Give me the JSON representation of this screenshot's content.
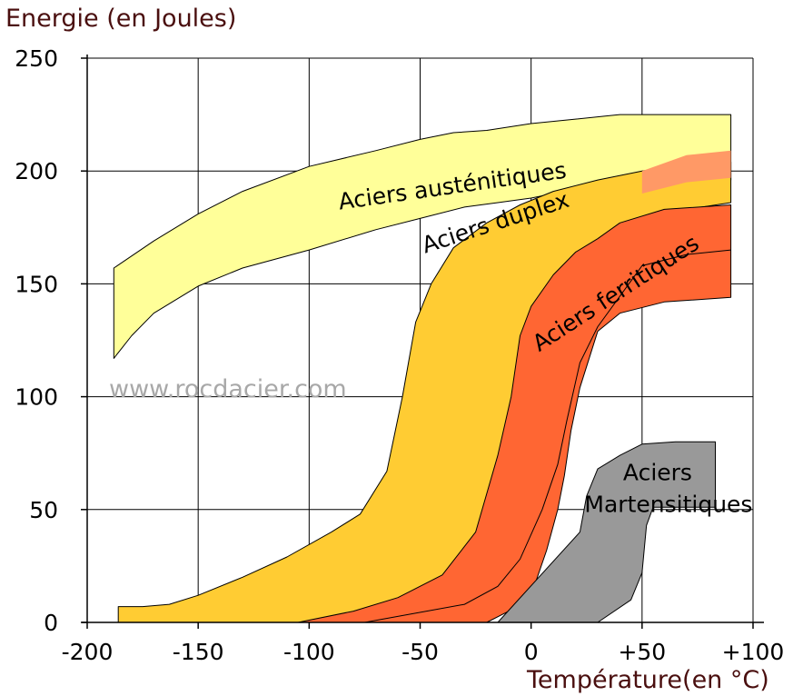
{
  "chart_data": {
    "type": "area",
    "title": "",
    "ylabel": "Energie (en Joules)",
    "xlabel": "Température(en °C)",
    "xlim": [
      -200,
      100
    ],
    "ylim": [
      0,
      250
    ],
    "grid": true,
    "watermark": "www.rocdacier.com",
    "x_ticks": [
      {
        "value": -200,
        "label": "-200"
      },
      {
        "value": -150,
        "label": "-150"
      },
      {
        "value": -100,
        "label": "-100"
      },
      {
        "value": -50,
        "label": "-50"
      },
      {
        "value": 0,
        "label": "0"
      },
      {
        "value": 50,
        "label": "+50"
      },
      {
        "value": 100,
        "label": "+100"
      }
    ],
    "y_ticks": [
      {
        "value": 0,
        "label": "0"
      },
      {
        "value": 50,
        "label": "50"
      },
      {
        "value": 100,
        "label": "100"
      },
      {
        "value": 150,
        "label": "150"
      },
      {
        "value": 200,
        "label": "200"
      },
      {
        "value": 250,
        "label": "250"
      }
    ],
    "series": [
      {
        "name": "Aciers austénitiques",
        "color": "#ffff99",
        "upper": [
          [
            -188,
            157
          ],
          [
            -170,
            169
          ],
          [
            -150,
            181
          ],
          [
            -130,
            191
          ],
          [
            -100,
            202
          ],
          [
            -70,
            209
          ],
          [
            -50,
            214
          ],
          [
            -35,
            217
          ],
          [
            -20,
            218
          ],
          [
            0,
            221
          ],
          [
            20,
            223
          ],
          [
            40,
            225
          ],
          [
            60,
            225
          ],
          [
            90,
            225
          ]
        ],
        "lower": [
          [
            -188,
            117
          ],
          [
            -180,
            127
          ],
          [
            -170,
            137
          ],
          [
            -150,
            149
          ],
          [
            -130,
            157
          ],
          [
            -100,
            165
          ],
          [
            -70,
            174
          ],
          [
            -50,
            179
          ],
          [
            -30,
            184
          ],
          [
            -15,
            186
          ],
          [
            0,
            188
          ],
          [
            20,
            192
          ],
          [
            40,
            194
          ],
          [
            60,
            195
          ],
          [
            90,
            196
          ]
        ],
        "label_x": -35,
        "label_y": 190,
        "label_rotation": -8
      },
      {
        "name": "Aciers duplex",
        "color": "#ffcc33",
        "upper": [
          [
            -186,
            7
          ],
          [
            -175,
            7
          ],
          [
            -163,
            8
          ],
          [
            -150,
            12
          ],
          [
            -130,
            20
          ],
          [
            -110,
            29
          ],
          [
            -90,
            40
          ],
          [
            -77,
            48
          ],
          [
            -65,
            67
          ],
          [
            -58,
            100
          ],
          [
            -52,
            133
          ],
          [
            -45,
            150
          ],
          [
            -35,
            166
          ],
          [
            -20,
            177
          ],
          [
            -5,
            185
          ],
          [
            10,
            191
          ],
          [
            30,
            196
          ],
          [
            50,
            200
          ],
          [
            70,
            203
          ],
          [
            90,
            204
          ]
        ],
        "lower": [
          [
            -186,
            0
          ],
          [
            -30,
            0
          ],
          [
            -20,
            4
          ],
          [
            -10,
            12
          ],
          [
            -2,
            26
          ],
          [
            2,
            45
          ],
          [
            5,
            70
          ],
          [
            8,
            100
          ],
          [
            15,
            140
          ],
          [
            30,
            160
          ],
          [
            50,
            172
          ],
          [
            70,
            183
          ],
          [
            90,
            186
          ]
        ],
        "label_x": -15,
        "label_y": 174,
        "label_rotation": -18
      },
      {
        "name": "Aciers ferritiques",
        "color": "#ff6633",
        "upper": [
          [
            -105,
            0
          ],
          [
            -80,
            5
          ],
          [
            -60,
            11
          ],
          [
            -40,
            21
          ],
          [
            -25,
            40
          ],
          [
            -15,
            74
          ],
          [
            -9,
            100
          ],
          [
            -5,
            127
          ],
          [
            0,
            140
          ],
          [
            10,
            154
          ],
          [
            20,
            164
          ],
          [
            30,
            170
          ],
          [
            40,
            177
          ],
          [
            60,
            183
          ],
          [
            90,
            185
          ]
        ],
        "lower": [
          [
            -73,
            0
          ],
          [
            -20,
            0
          ],
          [
            -10,
            5
          ],
          [
            0,
            12
          ],
          [
            7,
            32
          ],
          [
            12,
            50
          ],
          [
            15,
            65
          ],
          [
            18,
            85
          ],
          [
            22,
            104
          ],
          [
            30,
            129
          ],
          [
            40,
            137
          ],
          [
            60,
            142
          ],
          [
            90,
            144
          ]
        ],
        "label_x": 40,
        "label_y": 143,
        "label_rotation": -33
      },
      {
        "name": "Aciers Martensitiques",
        "color": "#999999",
        "upper": [
          [
            22,
            40
          ],
          [
            25,
            56
          ],
          [
            30,
            68
          ],
          [
            40,
            74
          ],
          [
            50,
            79
          ],
          [
            65,
            80
          ],
          [
            83,
            80
          ]
        ],
        "lower": [
          [
            -15,
            0
          ],
          [
            30,
            0
          ],
          [
            45,
            10
          ],
          [
            50,
            22
          ],
          [
            52,
            43
          ],
          [
            55,
            51
          ],
          [
            70,
            51
          ],
          [
            83,
            51
          ]
        ],
        "label_line1": "Aciers",
        "label_line2": "Martensitiques",
        "label_x": 57,
        "label_y": 63
      }
    ],
    "divider_line": [
      [
        -75,
        0
      ],
      [
        -30,
        8
      ],
      [
        -15,
        16
      ],
      [
        -5,
        28
      ],
      [
        5,
        50
      ],
      [
        12,
        70
      ],
      [
        16,
        89
      ],
      [
        22,
        115
      ],
      [
        30,
        131
      ],
      [
        50,
        158
      ],
      [
        70,
        163
      ],
      [
        90,
        165
      ]
    ],
    "top_ferritic_band": {
      "color": "#ff9966",
      "upper": [
        [
          50,
          200
        ],
        [
          70,
          207
        ],
        [
          90,
          209
        ]
      ],
      "lower": [
        [
          50,
          190
        ],
        [
          70,
          195
        ],
        [
          90,
          197
        ]
      ]
    }
  }
}
